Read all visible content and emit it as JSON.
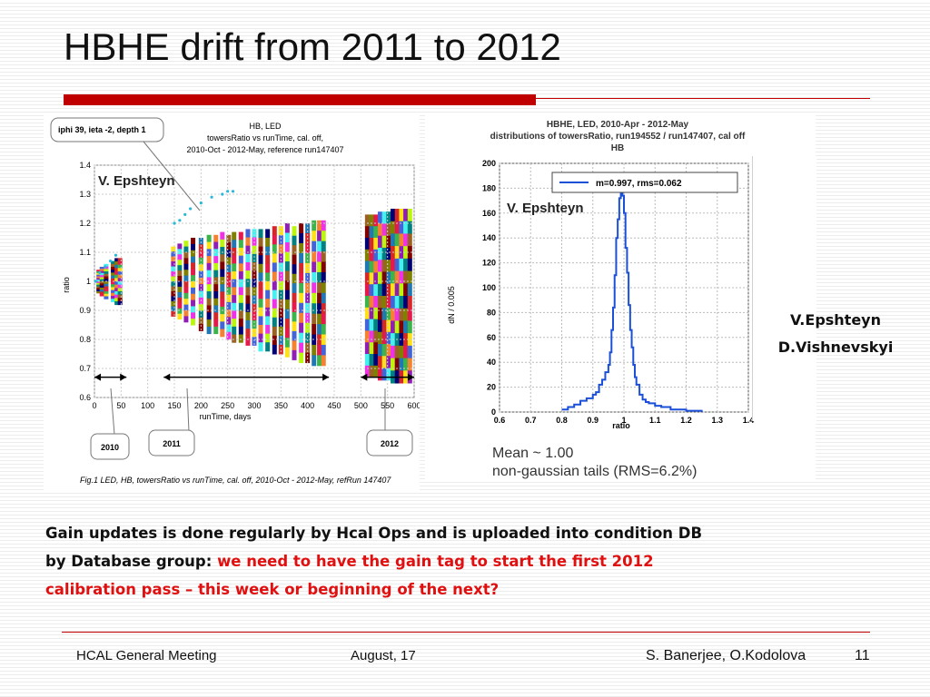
{
  "slide": {
    "title": "HBHE drift from 2011 to 2012",
    "authors": [
      "V.Epshteyn",
      "D.Vishnevskyi"
    ],
    "body_black": "Gain updates is done regularly by Hcal Ops and is uploaded into condition DB by Database group: ",
    "body_red": "we need to have the gain tag to start the first 2012 calibration pass – this week or beginning of the next?",
    "footer": {
      "left": "HCAL General Meeting",
      "center": "August, 17",
      "right": "S. Banerjee, O.Kodolova",
      "page": "11"
    },
    "colors": {
      "accent": "#c00000",
      "highlight": "#e01010"
    }
  },
  "chart_data": [
    {
      "type": "scatter",
      "title": "HB, LED",
      "subtitle": [
        "towersRatio vs runTime, cal. off,",
        "2010-Oct - 2012-May, reference run147407"
      ],
      "xlabel": "runTime, days",
      "ylabel": "ratio",
      "xlim": [
        0,
        600
      ],
      "ylim": [
        0.6,
        1.4
      ],
      "xticks": [
        "0",
        "50",
        "100",
        "150",
        "200",
        "250",
        "300",
        "350",
        "400",
        "450",
        "500",
        "550",
        "600"
      ],
      "yticks": [
        "0.6",
        "0.7",
        "0.8",
        "0.9",
        "1",
        "1.1",
        "1.2",
        "1.3",
        "1.4"
      ],
      "watermark": "V. Epshteyn",
      "callout": "iphi 39, ieta -2, depth 1",
      "period_labels": [
        "2010",
        "2011",
        "2012"
      ],
      "caption": "Fig.1 LED, HB, towersRatio vs runTime, cal. off, 2010-Oct - 2012-May, refRun 147407",
      "series_highlight": {
        "name": "iphi 39, ieta -2, depth 1",
        "x": [
          2,
          10,
          20,
          30,
          40,
          150,
          160,
          170,
          180,
          200,
          220,
          240,
          250,
          260
        ],
        "y": [
          1.0,
          1.03,
          1.05,
          1.07,
          1.09,
          1.2,
          1.21,
          1.23,
          1.25,
          1.27,
          1.29,
          1.3,
          1.31,
          1.31
        ]
      },
      "bands": [
        {
          "x": 8,
          "center": 1.0,
          "spread": 0.04
        },
        {
          "x": 14,
          "center": 1.0,
          "spread": 0.05
        },
        {
          "x": 22,
          "center": 1.0,
          "spread": 0.06
        },
        {
          "x": 35,
          "center": 1.0,
          "spread": 0.07
        },
        {
          "x": 42,
          "center": 1.0,
          "spread": 0.08
        },
        {
          "x": 48,
          "center": 1.0,
          "spread": 0.08
        },
        {
          "x": 148,
          "center": 1.0,
          "spread": 0.12
        },
        {
          "x": 160,
          "center": 1.0,
          "spread": 0.13
        },
        {
          "x": 172,
          "center": 1.0,
          "spread": 0.14
        },
        {
          "x": 185,
          "center": 1.0,
          "spread": 0.15
        },
        {
          "x": 200,
          "center": 0.99,
          "spread": 0.16
        },
        {
          "x": 215,
          "center": 0.99,
          "spread": 0.17
        },
        {
          "x": 228,
          "center": 0.99,
          "spread": 0.17
        },
        {
          "x": 240,
          "center": 0.99,
          "spread": 0.18
        },
        {
          "x": 252,
          "center": 0.98,
          "spread": 0.18
        },
        {
          "x": 262,
          "center": 0.98,
          "spread": 0.19
        },
        {
          "x": 275,
          "center": 0.98,
          "spread": 0.19
        },
        {
          "x": 288,
          "center": 0.98,
          "spread": 0.2
        },
        {
          "x": 300,
          "center": 0.98,
          "spread": 0.2
        },
        {
          "x": 312,
          "center": 0.97,
          "spread": 0.21
        },
        {
          "x": 325,
          "center": 0.97,
          "spread": 0.21
        },
        {
          "x": 338,
          "center": 0.97,
          "spread": 0.22
        },
        {
          "x": 350,
          "center": 0.97,
          "spread": 0.22
        },
        {
          "x": 362,
          "center": 0.97,
          "spread": 0.23
        },
        {
          "x": 375,
          "center": 0.96,
          "spread": 0.23
        },
        {
          "x": 388,
          "center": 0.96,
          "spread": 0.24
        },
        {
          "x": 400,
          "center": 0.96,
          "spread": 0.24
        },
        {
          "x": 412,
          "center": 0.96,
          "spread": 0.25
        },
        {
          "x": 422,
          "center": 0.96,
          "spread": 0.25
        },
        {
          "x": 430,
          "center": 0.96,
          "spread": 0.25
        },
        {
          "x": 512,
          "center": 0.95,
          "spread": 0.28
        },
        {
          "x": 520,
          "center": 0.95,
          "spread": 0.28
        },
        {
          "x": 528,
          "center": 0.95,
          "spread": 0.28
        },
        {
          "x": 536,
          "center": 0.95,
          "spread": 0.29
        },
        {
          "x": 544,
          "center": 0.95,
          "spread": 0.29
        },
        {
          "x": 552,
          "center": 0.95,
          "spread": 0.29
        },
        {
          "x": 560,
          "center": 0.95,
          "spread": 0.3
        },
        {
          "x": 568,
          "center": 0.95,
          "spread": 0.3
        },
        {
          "x": 576,
          "center": 0.95,
          "spread": 0.3
        },
        {
          "x": 584,
          "center": 0.95,
          "spread": 0.3
        },
        {
          "x": 592,
          "center": 0.95,
          "spread": 0.3
        }
      ],
      "period_ranges": [
        [
          0,
          60
        ],
        [
          130,
          440
        ],
        [
          500,
          600
        ]
      ]
    },
    {
      "type": "line",
      "title": "HBHE, LED, 2010-Apr - 2012-May",
      "subtitle": "distributions of towersRatio, run194552 / run147407, cal off",
      "subtitle2": "HB",
      "xlabel": "ratio",
      "ylabel": "dN / 0.005",
      "xlim": [
        0.6,
        1.4
      ],
      "ylim": [
        0,
        200
      ],
      "xticks": [
        "0.6",
        "0.7",
        "0.8",
        "0.9",
        "1",
        "1.1",
        "1.2",
        "1.3",
        "1.4"
      ],
      "yticks": [
        "0",
        "20",
        "40",
        "60",
        "80",
        "100",
        "120",
        "140",
        "160",
        "180",
        "200"
      ],
      "legend": "m=0.997, rms=0.062",
      "legend_position": "top-right",
      "watermark": "V. Epshteyn",
      "notes": [
        "Mean   ~ 1.00",
        "non-gaussian tails (RMS=6.2%)"
      ],
      "series": [
        {
          "name": "m=0.997, rms=0.062",
          "x": [
            0.8,
            0.82,
            0.84,
            0.86,
            0.88,
            0.9,
            0.91,
            0.92,
            0.93,
            0.94,
            0.95,
            0.955,
            0.96,
            0.965,
            0.97,
            0.975,
            0.98,
            0.985,
            0.99,
            0.995,
            1.0,
            1.005,
            1.01,
            1.015,
            1.02,
            1.025,
            1.03,
            1.035,
            1.04,
            1.05,
            1.06,
            1.07,
            1.08,
            1.1,
            1.12,
            1.15,
            1.2,
            1.25
          ],
          "y": [
            2,
            4,
            6,
            9,
            11,
            14,
            16,
            22,
            26,
            32,
            38,
            48,
            66,
            84,
            110,
            140,
            155,
            172,
            176,
            174,
            160,
            132,
            112,
            86,
            66,
            52,
            38,
            28,
            22,
            14,
            10,
            8,
            7,
            5,
            4,
            2,
            1,
            0
          ]
        }
      ]
    }
  ]
}
